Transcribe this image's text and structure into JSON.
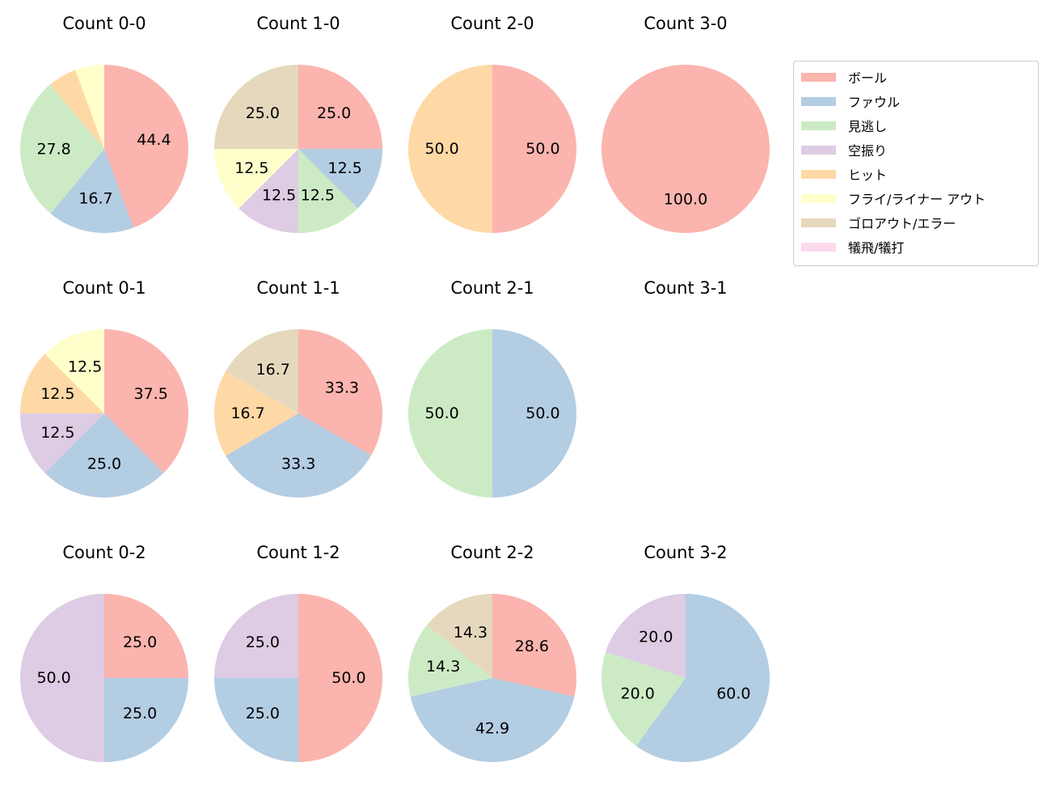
{
  "figure": {
    "background_color": "#ffffff",
    "text_color": "#000000"
  },
  "legend": {
    "position": "upper right",
    "border_color": "#cccccc",
    "items": [
      {
        "key": "ball",
        "label": "ボール",
        "color": "#fbb4ae"
      },
      {
        "key": "foul",
        "label": "ファウル",
        "color": "#b3cde3"
      },
      {
        "key": "called-strike",
        "label": "見逃し",
        "color": "#ccebc5"
      },
      {
        "key": "swinging-strike",
        "label": "空振り",
        "color": "#decbe4"
      },
      {
        "key": "hit",
        "label": "ヒット",
        "color": "#fed9a6"
      },
      {
        "key": "fly-liner-out",
        "label": "フライ/ライナー アウト",
        "color": "#ffffcc"
      },
      {
        "key": "groundout-error",
        "label": "ゴロアウト/エラー",
        "color": "#e5d8bd"
      },
      {
        "key": "sac-fly-bunt",
        "label": "犠飛/犠打",
        "color": "#fddaec"
      }
    ]
  },
  "chart_data": {
    "type": "pie",
    "layout": "grid of 12 pies (4 columns x 3 rows) by ball-strike count",
    "units": "percent",
    "start_angle_deg": 90,
    "direction": "clockwise",
    "pies": [
      {
        "title": "Count 0-0",
        "slices": [
          {
            "key": "ball",
            "value": 44.4,
            "label": "44.4"
          },
          {
            "key": "foul",
            "value": 16.7,
            "label": "16.7"
          },
          {
            "key": "called-strike",
            "value": 27.8,
            "label": "27.8"
          },
          {
            "key": "hit",
            "value": 5.6,
            "label": ""
          },
          {
            "key": "fly-liner-out",
            "value": 5.6,
            "label": ""
          }
        ]
      },
      {
        "title": "Count 1-0",
        "slices": [
          {
            "key": "ball",
            "value": 25.0,
            "label": "25.0"
          },
          {
            "key": "foul",
            "value": 12.5,
            "label": "12.5"
          },
          {
            "key": "called-strike",
            "value": 12.5,
            "label": "12.5"
          },
          {
            "key": "swinging-strike",
            "value": 12.5,
            "label": "12.5"
          },
          {
            "key": "fly-liner-out",
            "value": 12.5,
            "label": "12.5"
          },
          {
            "key": "groundout-error",
            "value": 25.0,
            "label": "25.0"
          }
        ]
      },
      {
        "title": "Count 2-0",
        "slices": [
          {
            "key": "ball",
            "value": 50.0,
            "label": "50.0"
          },
          {
            "key": "hit",
            "value": 50.0,
            "label": "50.0"
          }
        ]
      },
      {
        "title": "Count 3-0",
        "slices": [
          {
            "key": "ball",
            "value": 100.0,
            "label": "100.0"
          }
        ]
      },
      {
        "title": "Count 0-1",
        "slices": [
          {
            "key": "ball",
            "value": 37.5,
            "label": "37.5"
          },
          {
            "key": "foul",
            "value": 25.0,
            "label": "25.0"
          },
          {
            "key": "swinging-strike",
            "value": 12.5,
            "label": "12.5"
          },
          {
            "key": "hit",
            "value": 12.5,
            "label": "12.5"
          },
          {
            "key": "fly-liner-out",
            "value": 12.5,
            "label": "12.5"
          }
        ]
      },
      {
        "title": "Count 1-1",
        "slices": [
          {
            "key": "ball",
            "value": 33.3,
            "label": "33.3"
          },
          {
            "key": "foul",
            "value": 33.3,
            "label": "33.3"
          },
          {
            "key": "hit",
            "value": 16.7,
            "label": "16.7"
          },
          {
            "key": "groundout-error",
            "value": 16.7,
            "label": "16.7"
          }
        ]
      },
      {
        "title": "Count 2-1",
        "slices": [
          {
            "key": "foul",
            "value": 50.0,
            "label": "50.0"
          },
          {
            "key": "called-strike",
            "value": 50.0,
            "label": "50.0"
          }
        ]
      },
      {
        "title": "Count 3-1",
        "slices": []
      },
      {
        "title": "Count 0-2",
        "slices": [
          {
            "key": "ball",
            "value": 25.0,
            "label": "25.0"
          },
          {
            "key": "foul",
            "value": 25.0,
            "label": "25.0"
          },
          {
            "key": "swinging-strike",
            "value": 50.0,
            "label": "50.0"
          }
        ]
      },
      {
        "title": "Count 1-2",
        "slices": [
          {
            "key": "ball",
            "value": 50.0,
            "label": "50.0"
          },
          {
            "key": "foul",
            "value": 25.0,
            "label": "25.0"
          },
          {
            "key": "swinging-strike",
            "value": 25.0,
            "label": "25.0"
          }
        ]
      },
      {
        "title": "Count 2-2",
        "slices": [
          {
            "key": "ball",
            "value": 28.6,
            "label": "28.6"
          },
          {
            "key": "foul",
            "value": 42.9,
            "label": "42.9"
          },
          {
            "key": "called-strike",
            "value": 14.3,
            "label": "14.3"
          },
          {
            "key": "groundout-error",
            "value": 14.3,
            "label": "14.3"
          }
        ]
      },
      {
        "title": "Count 3-2",
        "slices": [
          {
            "key": "foul",
            "value": 60.0,
            "label": "60.0"
          },
          {
            "key": "called-strike",
            "value": 20.0,
            "label": "20.0"
          },
          {
            "key": "swinging-strike",
            "value": 20.0,
            "label": "20.0"
          }
        ]
      }
    ]
  }
}
